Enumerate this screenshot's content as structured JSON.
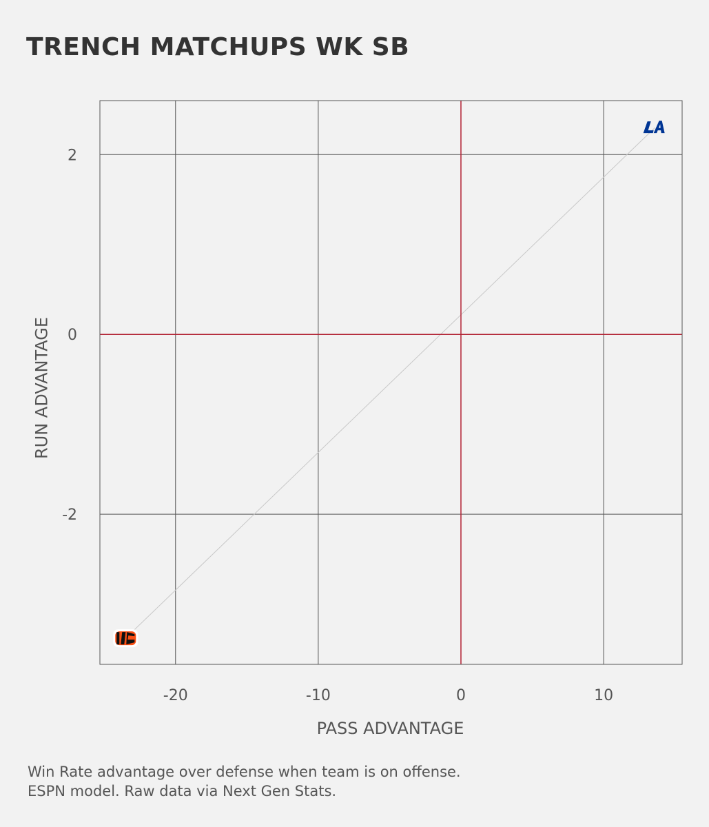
{
  "chart_data": {
    "type": "scatter",
    "title": "TRENCH MATCHUPS WK SB",
    "xlabel": "PASS ADVANTAGE",
    "ylabel": "RUN ADVANTAGE",
    "xlim": [
      -25.3,
      15.5
    ],
    "ylim": [
      -3.67,
      2.6
    ],
    "xticks": [
      -20,
      -10,
      0,
      10
    ],
    "yticks": [
      -2,
      0,
      2
    ],
    "grid": true,
    "reference_lines": {
      "x": 0,
      "y": 0,
      "color": "#b22234"
    },
    "points": [
      {
        "team": "LA",
        "x": 13.6,
        "y": 2.3,
        "logo": "rams-logo"
      },
      {
        "team": "CIN",
        "x": -23.5,
        "y": -3.38,
        "logo": "bengals-logo"
      }
    ],
    "trend_line": {
      "from": [
        -23.5,
        -3.38
      ],
      "to": [
        13.6,
        2.3
      ],
      "color": "#c8c8c8"
    }
  },
  "footnote": {
    "line1": "Win Rate advantage over defense when team is on offense.",
    "line2": "ESPN model. Raw data via Next Gen Stats."
  },
  "colors": {
    "background": "#f2f2f2",
    "grid": "#555555",
    "zero_line": "#b22234",
    "rams_blue": "#003594",
    "rams_gold": "#ffd100",
    "bengals_orange": "#fb4f14"
  }
}
